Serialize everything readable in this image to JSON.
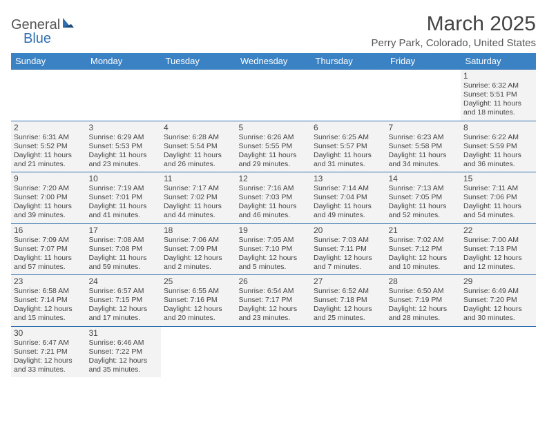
{
  "logo": {
    "part1": "General",
    "part2": "Blue"
  },
  "title": "March 2025",
  "location": "Perry Park, Colorado, United States",
  "weekdays": [
    "Sunday",
    "Monday",
    "Tuesday",
    "Wednesday",
    "Thursday",
    "Friday",
    "Saturday"
  ],
  "colors": {
    "header_bg": "#3b82c4",
    "header_text": "#ffffff",
    "border": "#2f6fb0",
    "cell_bg": "#f3f3f3",
    "text": "#444444"
  },
  "weeks": [
    [
      null,
      null,
      null,
      null,
      null,
      null,
      {
        "n": "1",
        "sunrise": "Sunrise: 6:32 AM",
        "sunset": "Sunset: 5:51 PM",
        "daylight": "Daylight: 11 hours and 18 minutes."
      }
    ],
    [
      {
        "n": "2",
        "sunrise": "Sunrise: 6:31 AM",
        "sunset": "Sunset: 5:52 PM",
        "daylight": "Daylight: 11 hours and 21 minutes."
      },
      {
        "n": "3",
        "sunrise": "Sunrise: 6:29 AM",
        "sunset": "Sunset: 5:53 PM",
        "daylight": "Daylight: 11 hours and 23 minutes."
      },
      {
        "n": "4",
        "sunrise": "Sunrise: 6:28 AM",
        "sunset": "Sunset: 5:54 PM",
        "daylight": "Daylight: 11 hours and 26 minutes."
      },
      {
        "n": "5",
        "sunrise": "Sunrise: 6:26 AM",
        "sunset": "Sunset: 5:55 PM",
        "daylight": "Daylight: 11 hours and 29 minutes."
      },
      {
        "n": "6",
        "sunrise": "Sunrise: 6:25 AM",
        "sunset": "Sunset: 5:57 PM",
        "daylight": "Daylight: 11 hours and 31 minutes."
      },
      {
        "n": "7",
        "sunrise": "Sunrise: 6:23 AM",
        "sunset": "Sunset: 5:58 PM",
        "daylight": "Daylight: 11 hours and 34 minutes."
      },
      {
        "n": "8",
        "sunrise": "Sunrise: 6:22 AM",
        "sunset": "Sunset: 5:59 PM",
        "daylight": "Daylight: 11 hours and 36 minutes."
      }
    ],
    [
      {
        "n": "9",
        "sunrise": "Sunrise: 7:20 AM",
        "sunset": "Sunset: 7:00 PM",
        "daylight": "Daylight: 11 hours and 39 minutes."
      },
      {
        "n": "10",
        "sunrise": "Sunrise: 7:19 AM",
        "sunset": "Sunset: 7:01 PM",
        "daylight": "Daylight: 11 hours and 41 minutes."
      },
      {
        "n": "11",
        "sunrise": "Sunrise: 7:17 AM",
        "sunset": "Sunset: 7:02 PM",
        "daylight": "Daylight: 11 hours and 44 minutes."
      },
      {
        "n": "12",
        "sunrise": "Sunrise: 7:16 AM",
        "sunset": "Sunset: 7:03 PM",
        "daylight": "Daylight: 11 hours and 46 minutes."
      },
      {
        "n": "13",
        "sunrise": "Sunrise: 7:14 AM",
        "sunset": "Sunset: 7:04 PM",
        "daylight": "Daylight: 11 hours and 49 minutes."
      },
      {
        "n": "14",
        "sunrise": "Sunrise: 7:13 AM",
        "sunset": "Sunset: 7:05 PM",
        "daylight": "Daylight: 11 hours and 52 minutes."
      },
      {
        "n": "15",
        "sunrise": "Sunrise: 7:11 AM",
        "sunset": "Sunset: 7:06 PM",
        "daylight": "Daylight: 11 hours and 54 minutes."
      }
    ],
    [
      {
        "n": "16",
        "sunrise": "Sunrise: 7:09 AM",
        "sunset": "Sunset: 7:07 PM",
        "daylight": "Daylight: 11 hours and 57 minutes."
      },
      {
        "n": "17",
        "sunrise": "Sunrise: 7:08 AM",
        "sunset": "Sunset: 7:08 PM",
        "daylight": "Daylight: 11 hours and 59 minutes."
      },
      {
        "n": "18",
        "sunrise": "Sunrise: 7:06 AM",
        "sunset": "Sunset: 7:09 PM",
        "daylight": "Daylight: 12 hours and 2 minutes."
      },
      {
        "n": "19",
        "sunrise": "Sunrise: 7:05 AM",
        "sunset": "Sunset: 7:10 PM",
        "daylight": "Daylight: 12 hours and 5 minutes."
      },
      {
        "n": "20",
        "sunrise": "Sunrise: 7:03 AM",
        "sunset": "Sunset: 7:11 PM",
        "daylight": "Daylight: 12 hours and 7 minutes."
      },
      {
        "n": "21",
        "sunrise": "Sunrise: 7:02 AM",
        "sunset": "Sunset: 7:12 PM",
        "daylight": "Daylight: 12 hours and 10 minutes."
      },
      {
        "n": "22",
        "sunrise": "Sunrise: 7:00 AM",
        "sunset": "Sunset: 7:13 PM",
        "daylight": "Daylight: 12 hours and 12 minutes."
      }
    ],
    [
      {
        "n": "23",
        "sunrise": "Sunrise: 6:58 AM",
        "sunset": "Sunset: 7:14 PM",
        "daylight": "Daylight: 12 hours and 15 minutes."
      },
      {
        "n": "24",
        "sunrise": "Sunrise: 6:57 AM",
        "sunset": "Sunset: 7:15 PM",
        "daylight": "Daylight: 12 hours and 17 minutes."
      },
      {
        "n": "25",
        "sunrise": "Sunrise: 6:55 AM",
        "sunset": "Sunset: 7:16 PM",
        "daylight": "Daylight: 12 hours and 20 minutes."
      },
      {
        "n": "26",
        "sunrise": "Sunrise: 6:54 AM",
        "sunset": "Sunset: 7:17 PM",
        "daylight": "Daylight: 12 hours and 23 minutes."
      },
      {
        "n": "27",
        "sunrise": "Sunrise: 6:52 AM",
        "sunset": "Sunset: 7:18 PM",
        "daylight": "Daylight: 12 hours and 25 minutes."
      },
      {
        "n": "28",
        "sunrise": "Sunrise: 6:50 AM",
        "sunset": "Sunset: 7:19 PM",
        "daylight": "Daylight: 12 hours and 28 minutes."
      },
      {
        "n": "29",
        "sunrise": "Sunrise: 6:49 AM",
        "sunset": "Sunset: 7:20 PM",
        "daylight": "Daylight: 12 hours and 30 minutes."
      }
    ],
    [
      {
        "n": "30",
        "sunrise": "Sunrise: 6:47 AM",
        "sunset": "Sunset: 7:21 PM",
        "daylight": "Daylight: 12 hours and 33 minutes."
      },
      {
        "n": "31",
        "sunrise": "Sunrise: 6:46 AM",
        "sunset": "Sunset: 7:22 PM",
        "daylight": "Daylight: 12 hours and 35 minutes."
      },
      null,
      null,
      null,
      null,
      null
    ]
  ]
}
